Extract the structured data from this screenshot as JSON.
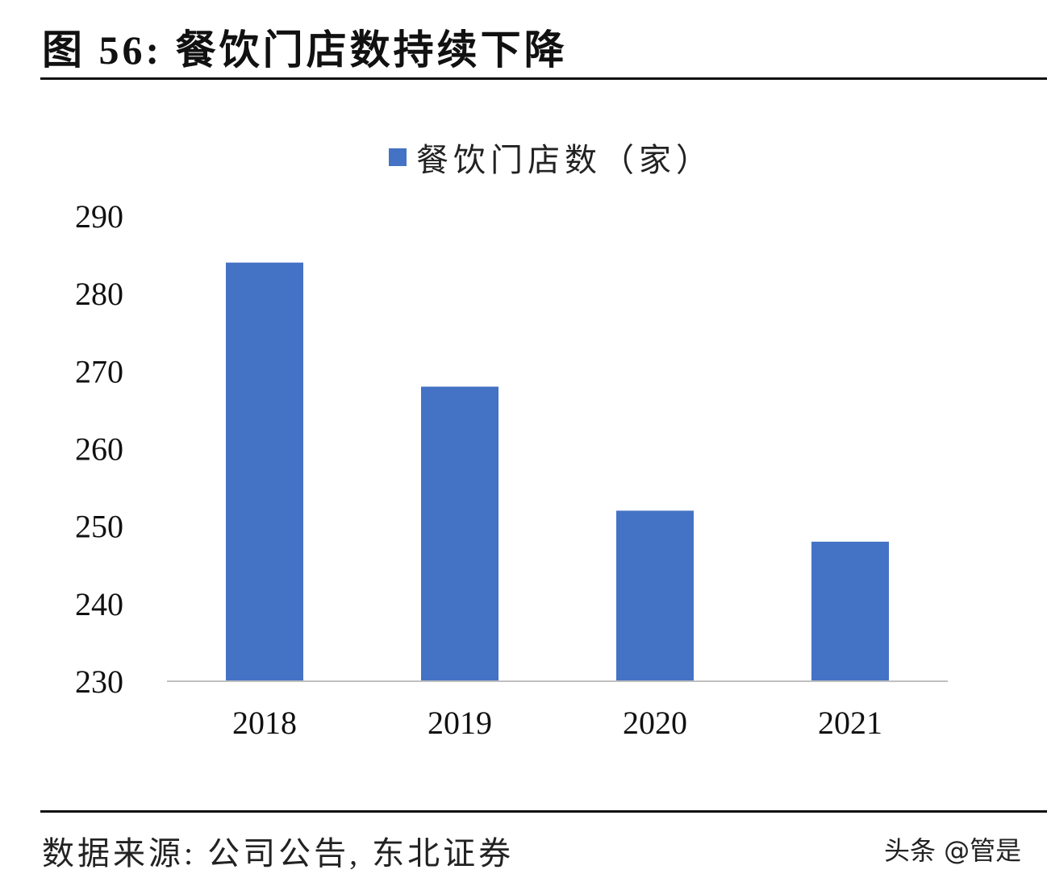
{
  "title": "图  56:  餐饮门店数持续下降",
  "source": "数据来源:  公司公告,  东北证券",
  "watermark": "头条 @管是",
  "chart_data": {
    "type": "bar",
    "title": "",
    "categories": [
      "2018",
      "2019",
      "2020",
      "2021"
    ],
    "series": [
      {
        "name": "餐饮门店数（家）",
        "values": [
          284,
          268,
          252,
          248
        ],
        "color": "#4472C4"
      }
    ],
    "ylim": [
      230,
      290
    ],
    "yticks": [
      "230",
      "240",
      "250",
      "260",
      "270",
      "280",
      "290"
    ],
    "xlabel": "",
    "ylabel": "",
    "grid": false,
    "legend": "top-center"
  }
}
